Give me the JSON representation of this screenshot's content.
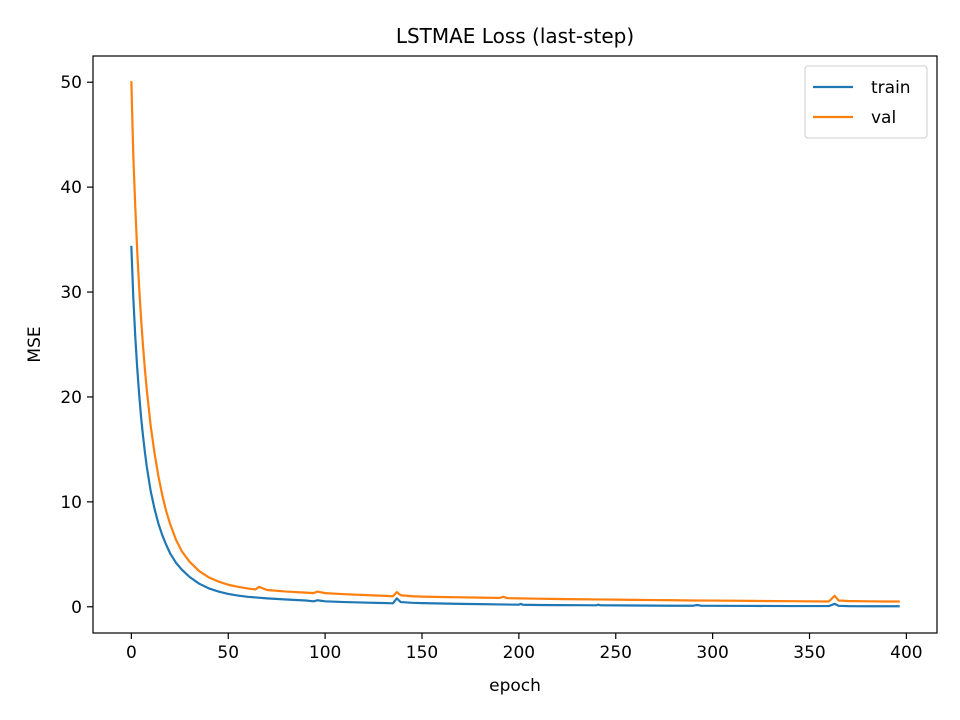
{
  "chart_data": {
    "type": "line",
    "title": "LSTMAE Loss (last-step)",
    "xlabel": "epoch",
    "ylabel": "MSE",
    "xlim": [
      -19.8,
      415.8
    ],
    "ylim": [
      -2.5,
      52.5
    ],
    "xticks": [
      0,
      50,
      100,
      150,
      200,
      250,
      300,
      350,
      400
    ],
    "yticks": [
      0,
      10,
      20,
      30,
      40,
      50
    ],
    "grid": false,
    "legend_position": "top-right",
    "series": [
      {
        "name": "train",
        "color": "#1f77b4",
        "x": [
          0,
          1,
          2,
          3,
          4,
          5,
          6,
          7,
          8,
          10,
          12,
          14,
          16,
          18,
          20,
          23,
          26,
          30,
          35,
          40,
          45,
          50,
          55,
          60,
          70,
          80,
          90,
          94,
          96,
          100,
          110,
          120,
          130,
          135,
          137,
          139,
          145,
          150,
          160,
          170,
          180,
          190,
          200,
          201,
          202,
          210,
          220,
          230,
          240,
          241,
          242,
          250,
          260,
          270,
          280,
          290,
          292,
          294,
          300,
          320,
          340,
          360,
          363,
          365,
          370,
          380,
          390,
          396
        ],
        "values": [
          34.3,
          29.5,
          25.8,
          22.8,
          20.3,
          18.1,
          16.3,
          14.7,
          13.3,
          11.0,
          9.3,
          7.9,
          6.8,
          5.9,
          5.1,
          4.2,
          3.55,
          2.85,
          2.2,
          1.75,
          1.45,
          1.22,
          1.07,
          0.95,
          0.8,
          0.69,
          0.6,
          0.52,
          0.62,
          0.52,
          0.45,
          0.4,
          0.36,
          0.33,
          0.8,
          0.45,
          0.38,
          0.35,
          0.31,
          0.28,
          0.25,
          0.22,
          0.2,
          0.28,
          0.19,
          0.17,
          0.16,
          0.15,
          0.14,
          0.2,
          0.14,
          0.13,
          0.12,
          0.11,
          0.1,
          0.1,
          0.17,
          0.1,
          0.09,
          0.08,
          0.07,
          0.07,
          0.28,
          0.09,
          0.06,
          0.05,
          0.05,
          0.05
        ]
      },
      {
        "name": "val",
        "color": "#ff7f0e",
        "x": [
          0,
          1,
          2,
          3,
          4,
          5,
          6,
          7,
          8,
          10,
          12,
          14,
          16,
          18,
          20,
          23,
          26,
          30,
          35,
          40,
          45,
          50,
          55,
          60,
          64,
          66,
          70,
          80,
          90,
          94,
          96,
          100,
          110,
          120,
          130,
          135,
          137,
          139,
          145,
          150,
          160,
          170,
          180,
          190,
          192,
          194,
          200,
          210,
          220,
          230,
          240,
          250,
          260,
          270,
          280,
          290,
          300,
          320,
          340,
          360,
          363,
          365,
          370,
          380,
          390,
          396
        ],
        "values": [
          50.0,
          43.0,
          38.2,
          34.0,
          30.5,
          27.5,
          24.9,
          22.6,
          20.6,
          17.2,
          14.6,
          12.4,
          10.6,
          9.1,
          7.9,
          6.4,
          5.3,
          4.3,
          3.4,
          2.8,
          2.4,
          2.1,
          1.9,
          1.75,
          1.65,
          1.9,
          1.6,
          1.45,
          1.35,
          1.3,
          1.45,
          1.3,
          1.2,
          1.12,
          1.05,
          1.0,
          1.4,
          1.1,
          1.0,
          0.97,
          0.93,
          0.9,
          0.87,
          0.84,
          0.95,
          0.82,
          0.8,
          0.77,
          0.74,
          0.72,
          0.7,
          0.68,
          0.66,
          0.64,
          0.62,
          0.6,
          0.59,
          0.56,
          0.53,
          0.5,
          1.05,
          0.6,
          0.55,
          0.52,
          0.5,
          0.5
        ]
      }
    ]
  }
}
